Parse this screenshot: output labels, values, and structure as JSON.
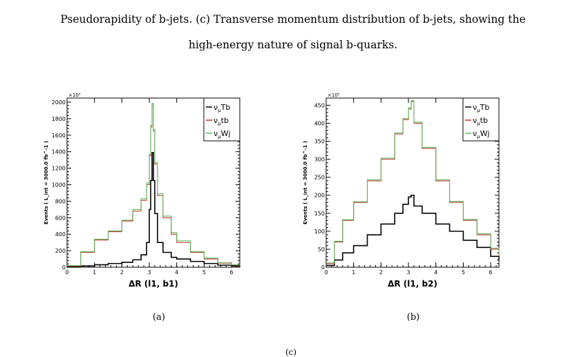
{
  "caption": {
    "line1": "Pseudorapidity of b-jets. (c) Transverse momentum distribution of b-jets, showing the",
    "line2": "high-energy nature of signal b-quarks."
  },
  "stub": "(c)",
  "colors": {
    "Tb": "#000000",
    "tb": "#c0392b",
    "Wj": "#5cb85c"
  },
  "chart_data": [
    {
      "type": "line",
      "panel_label": "(a)",
      "ylabel": "Events ( L_int = 3000.0 fb^-1 )",
      "ylabel_sub": "int",
      "xlabel": "ΔR (l1, b1)",
      "y_multiplier": "×10³",
      "xlim": [
        0,
        6.3
      ],
      "ylim": [
        0,
        2050
      ],
      "x_ticks": [
        0,
        1,
        2,
        3,
        4,
        5,
        6
      ],
      "y_ticks": [
        0,
        200,
        400,
        600,
        800,
        1000,
        1200,
        1400,
        1600,
        1800,
        2000
      ],
      "legend": [
        "ν_μTb",
        "ν_μtb",
        "ν_μWj"
      ],
      "x": [
        0.0,
        0.5,
        1.0,
        1.5,
        2.0,
        2.4,
        2.7,
        2.9,
        3.0,
        3.05,
        3.1,
        3.15,
        3.2,
        3.3,
        3.5,
        3.8,
        4.0,
        4.5,
        5.0,
        5.5,
        6.0,
        6.3
      ],
      "series": [
        {
          "name": "ν_μTb",
          "values": [
            5,
            15,
            30,
            45,
            60,
            90,
            150,
            300,
            700,
            1050,
            1390,
            1050,
            650,
            300,
            180,
            120,
            100,
            70,
            45,
            25,
            15,
            10
          ]
        },
        {
          "name": "ν_μtb",
          "values": [
            15,
            180,
            330,
            430,
            560,
            680,
            810,
            1000,
            1350,
            1700,
            1960,
            1650,
            1250,
            870,
            600,
            400,
            300,
            180,
            100,
            50,
            25,
            20
          ]
        },
        {
          "name": "ν_μWj",
          "values": [
            20,
            190,
            340,
            440,
            570,
            700,
            830,
            1020,
            1370,
            1720,
            1985,
            1670,
            1270,
            890,
            620,
            420,
            320,
            190,
            110,
            55,
            30,
            25
          ]
        }
      ]
    },
    {
      "type": "line",
      "panel_label": "(b)",
      "ylabel": "Events ( L_int = 3000.0 fb^-1 )",
      "ylabel_sub": "int",
      "xlabel": "ΔR (l1, b2)",
      "y_multiplier": "×10³",
      "xlim": [
        0,
        6.3
      ],
      "ylim": [
        0,
        470
      ],
      "x_ticks": [
        0,
        1,
        2,
        3,
        4,
        5,
        6
      ],
      "y_ticks": [
        0,
        50,
        100,
        150,
        200,
        250,
        300,
        350,
        400,
        450
      ],
      "legend": [
        "ν_μTb",
        "ν_μtb",
        "ν_μWj"
      ],
      "x": [
        0.0,
        0.3,
        0.6,
        1.0,
        1.5,
        2.0,
        2.5,
        2.8,
        3.0,
        3.1,
        3.2,
        3.5,
        4.0,
        4.5,
        5.0,
        5.5,
        6.0,
        6.3
      ],
      "series": [
        {
          "name": "ν_μTb",
          "values": [
            5,
            20,
            40,
            60,
            90,
            120,
            150,
            175,
            195,
            200,
            170,
            150,
            120,
            100,
            75,
            55,
            30,
            20
          ]
        },
        {
          "name": "ν_μtb",
          "values": [
            10,
            70,
            130,
            180,
            240,
            300,
            370,
            410,
            440,
            460,
            400,
            330,
            240,
            180,
            130,
            90,
            50,
            30
          ]
        },
        {
          "name": "ν_μWj",
          "values": [
            12,
            72,
            132,
            182,
            243,
            303,
            373,
            413,
            443,
            463,
            403,
            333,
            243,
            183,
            133,
            93,
            53,
            33
          ]
        }
      ]
    }
  ]
}
